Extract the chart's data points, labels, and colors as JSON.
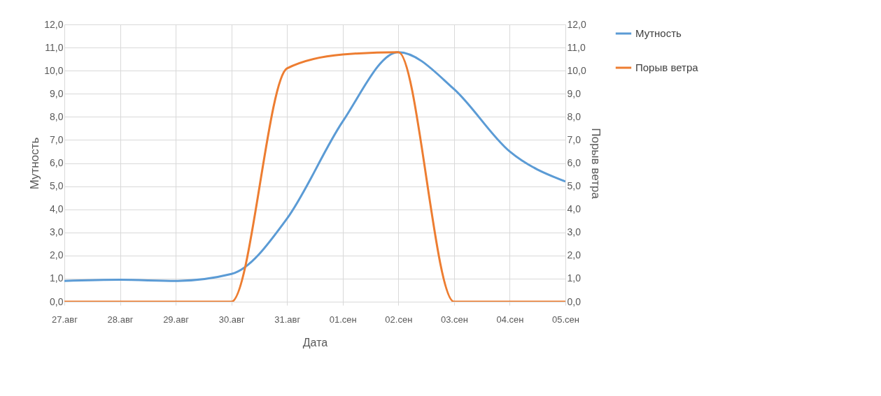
{
  "chart_data": {
    "type": "line",
    "xlabel": "Дата",
    "ylabel": "Мутность",
    "y2label": "Порыв ветра",
    "categories": [
      "27.авг",
      "28.авг",
      "29.авг",
      "30.авг",
      "31.авг",
      "01.сен",
      "02.сен",
      "03.сен",
      "04.сен",
      "05.сен"
    ],
    "series": [
      {
        "name": "Мутность",
        "color": "#5b9bd5",
        "values": [
          0.9,
          0.95,
          0.9,
          1.2,
          3.6,
          7.8,
          10.8,
          9.2,
          6.5,
          5.2
        ]
      },
      {
        "name": "Порыв ветра",
        "color": "#ed7d31",
        "axis": "y2",
        "values": [
          0,
          0,
          0,
          0,
          10.1,
          10.7,
          10.8,
          0,
          0,
          0
        ]
      }
    ],
    "ylim": [
      0,
      12
    ],
    "yticks": [
      {
        "value": 0,
        "label": "0,0"
      },
      {
        "value": 1,
        "label": "1,0"
      },
      {
        "value": 2,
        "label": "2,0"
      },
      {
        "value": 3,
        "label": "3,0"
      },
      {
        "value": 4,
        "label": "4,0"
      },
      {
        "value": 5,
        "label": "5,0"
      },
      {
        "value": 6,
        "label": "6,0"
      },
      {
        "value": 7,
        "label": "7,0"
      },
      {
        "value": 8,
        "label": "8,0"
      },
      {
        "value": 9,
        "label": "9,0"
      },
      {
        "value": 10,
        "label": "10,0"
      },
      {
        "value": 11,
        "label": "11,0"
      },
      {
        "value": 12,
        "label": "12,0"
      }
    ],
    "y2lim": [
      0,
      12
    ],
    "y2ticks": [
      {
        "value": 0,
        "label": "0,0"
      },
      {
        "value": 1,
        "label": "1,0"
      },
      {
        "value": 2,
        "label": "2,0"
      },
      {
        "value": 3,
        "label": "3,0"
      },
      {
        "value": 4,
        "label": "4,0"
      },
      {
        "value": 5,
        "label": "5,0"
      },
      {
        "value": 6,
        "label": "6,0"
      },
      {
        "value": 7,
        "label": "7,0"
      },
      {
        "value": 8,
        "label": "8,0"
      },
      {
        "value": 9,
        "label": "9,0"
      },
      {
        "value": 10,
        "label": "10,0"
      },
      {
        "value": 11,
        "label": "11,0"
      },
      {
        "value": 12,
        "label": "12,0"
      }
    ],
    "grid": true,
    "legend": "right",
    "marker": "none",
    "line_style": "solid"
  }
}
